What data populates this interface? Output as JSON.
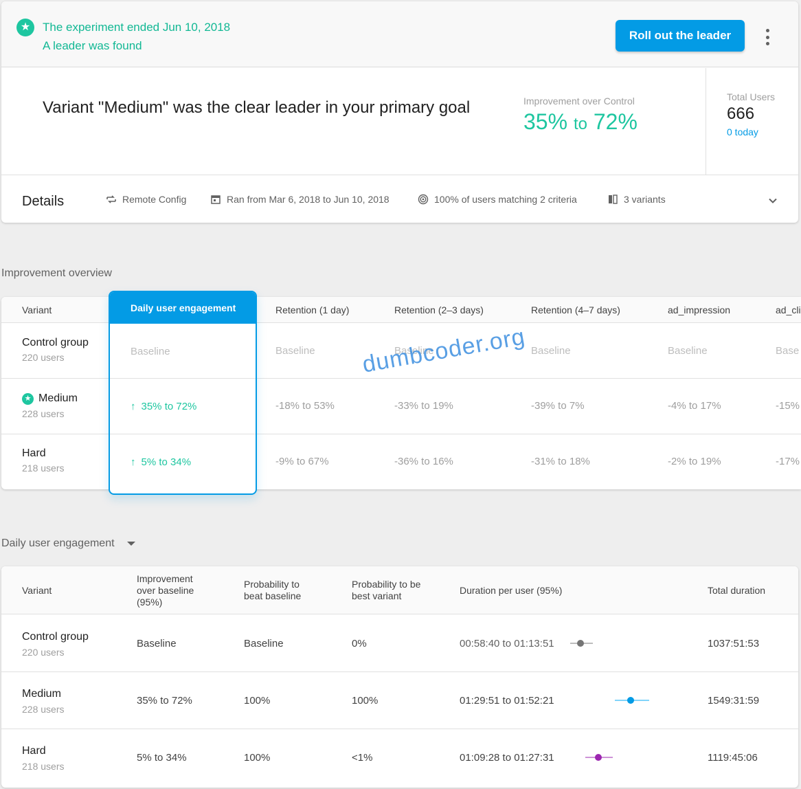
{
  "banner": {
    "title": "The experiment ended Jun 10, 2018",
    "subtitle": "A leader was found",
    "rollout_label": "Roll out the leader"
  },
  "summary": {
    "headline": "Variant \"Medium\" was the clear leader in your primary goal",
    "improvement_label": "Improvement over Control",
    "improvement_low": "35%",
    "improvement_to": "to",
    "improvement_high": "72%",
    "total_users_label": "Total Users",
    "total_users": "666",
    "today": "0 today"
  },
  "details": {
    "title": "Details",
    "remote_config": "Remote Config",
    "ran": "Ran from Mar 6, 2018 to Jun 10, 2018",
    "targeting": "100% of users matching 2 criteria",
    "variants": "3 variants"
  },
  "overview": {
    "section_title": "Improvement overview",
    "headers": [
      "Variant",
      "Daily user engagement",
      "Retention (1 day)",
      "Retention (2–3 days)",
      "Retention (4–7 days)",
      "ad_impression",
      "ad_cli"
    ],
    "rows": [
      {
        "name": "Control group",
        "users": "220 users",
        "due": "Baseline",
        "r1": "Baseline",
        "r23": "Baseline",
        "r47": "Baseline",
        "ad": "Baseline",
        "adc": "Base"
      },
      {
        "name": "Medium",
        "users": "228 users",
        "due": "35% to 72%",
        "r1": "-18% to 53%",
        "r23": "-33% to 19%",
        "r47": "-39% to 7%",
        "ad": "-4% to 17%",
        "adc": "-15%"
      },
      {
        "name": "Hard",
        "users": "218 users",
        "due": "5% to 34%",
        "r1": "-9% to 67%",
        "r23": "-36% to 16%",
        "r47": "-31% to 18%",
        "ad": "-2% to 19%",
        "adc": "-17%"
      }
    ]
  },
  "watermark": "dumbcoder.org",
  "engagement": {
    "section_title": "Daily user engagement",
    "headers": {
      "variant": "Variant",
      "improvement": "Improvement over baseline (95%)",
      "prob_beat": "Probability to beat baseline",
      "prob_best": "Probability to be best variant",
      "duration": "Duration per user (95%)",
      "total": "Total duration"
    },
    "rows": [
      {
        "name": "Control group",
        "users": "220 users",
        "improvement": "Baseline",
        "prob_beat": "Baseline",
        "prob_best": "0%",
        "duration": "00:58:40 to 01:13:51",
        "total": "1037:51:53",
        "ci_color": "#757575"
      },
      {
        "name": "Medium",
        "users": "228 users",
        "improvement": "35% to 72%",
        "prob_beat": "100%",
        "prob_best": "100%",
        "duration": "01:29:51 to 01:52:21",
        "total": "1549:31:59",
        "ci_color": "#039be5"
      },
      {
        "name": "Hard",
        "users": "218 users",
        "improvement": "5% to 34%",
        "prob_beat": "100%",
        "prob_best": "<1%",
        "duration": "01:09:28 to 01:27:31",
        "total": "1119:45:06",
        "ci_color": "#9c27b0"
      }
    ]
  }
}
